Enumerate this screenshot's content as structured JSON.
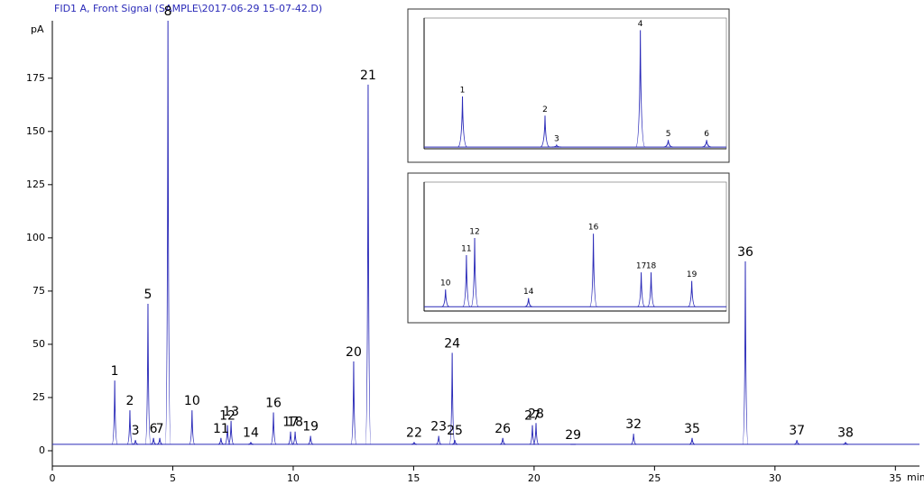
{
  "chart_data": [
    {
      "type": "line",
      "title": "FID1 A, Front Signal (SAMPLE\\2017-06-29 15-07-42.D)",
      "y_label": "pA",
      "x_label": "min",
      "color": "#2a2ab8",
      "xlim": [
        0,
        36
      ],
      "ylim": [
        0,
        202
      ],
      "xticks": [
        0,
        5,
        10,
        15,
        20,
        25,
        30,
        35
      ],
      "yticks": [
        0,
        25,
        50,
        75,
        100,
        125,
        150,
        175
      ],
      "baseline": 3,
      "peaks": {
        "labels": [
          "1",
          "2",
          "3",
          "5",
          "6",
          "7",
          "8",
          "10",
          "11",
          "12",
          "13",
          "14",
          "16",
          "17",
          "18",
          "19",
          "20",
          "21",
          "22",
          "23",
          "24",
          "25",
          "26",
          "27",
          "28",
          "29",
          "32",
          "35",
          "36",
          "37",
          "38"
        ],
        "x": [
          2.59,
          3.22,
          3.45,
          3.97,
          4.2,
          4.46,
          4.8,
          5.8,
          7.0,
          7.27,
          7.42,
          8.24,
          9.18,
          9.89,
          10.08,
          10.72,
          12.51,
          13.11,
          15.02,
          16.04,
          16.6,
          16.71,
          18.7,
          19.93,
          20.08,
          21.62,
          24.13,
          26.56,
          28.77,
          30.91,
          32.93
        ],
        "values": [
          33,
          19,
          5,
          69,
          6,
          6,
          202,
          19,
          6,
          12,
          14,
          4,
          18,
          9,
          9,
          7,
          42,
          172,
          4,
          7,
          46,
          5,
          6,
          12,
          13,
          3,
          8,
          6,
          89,
          5,
          4
        ]
      }
    },
    {
      "type": "line",
      "color": "#2a2ab8",
      "xlim": [
        2.2,
        4.8
      ],
      "ylim": [
        0,
        75
      ],
      "baseline": 1,
      "peaks": {
        "labels": [
          "1",
          "2",
          "3",
          "4",
          "5",
          "6"
        ],
        "x": [
          2.53,
          3.24,
          3.34,
          4.06,
          4.3,
          4.63
        ],
        "values": [
          30,
          19,
          2,
          68,
          5,
          5
        ]
      }
    },
    {
      "type": "line",
      "color": "#2a2ab8",
      "xlim": [
        5.5,
        11
      ],
      "ylim": [
        0,
        30
      ],
      "baseline": 1,
      "peaks": {
        "labels": [
          "10",
          "11",
          "12",
          "14",
          "16",
          "17",
          "18",
          "19"
        ],
        "x": [
          5.89,
          6.27,
          6.42,
          7.4,
          8.58,
          9.45,
          9.63,
          10.37
        ],
        "values": [
          5,
          13,
          17,
          3,
          18,
          9,
          9,
          7
        ]
      }
    }
  ]
}
